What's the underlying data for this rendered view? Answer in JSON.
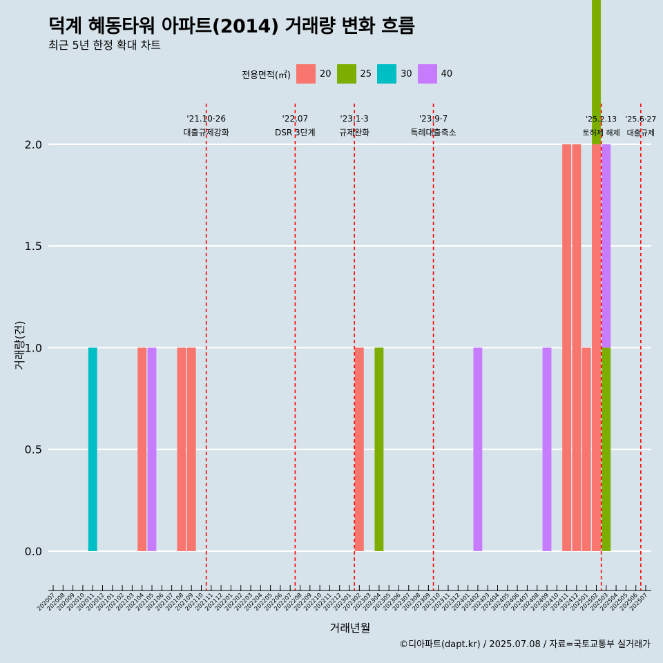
{
  "title": "덕계 혜동타워 아파트(2014) 거래량 변화 흐름",
  "subtitle": "최근 5년 한정 확대 차트",
  "caption": "©디아파트(dapt.kr) / 2025.07.08 / 자료=국토교통부 실거래가",
  "legend": {
    "title": "전용면적(㎡)",
    "items": [
      {
        "label": "20",
        "color": "#F8766D"
      },
      {
        "label": "25",
        "color": "#7CAE00"
      },
      {
        "label": "30",
        "color": "#00BFC4"
      },
      {
        "label": "40",
        "color": "#C77CFF"
      }
    ]
  },
  "chart_data": {
    "type": "bar",
    "xlabel": "거래년월",
    "ylabel": "거래량(건)",
    "ylim": [
      -0.17,
      2.2
    ],
    "yticks": [
      "0.0",
      "0.5",
      "1.0",
      "1.5",
      "2.0"
    ],
    "ytick_values": [
      0,
      0.5,
      1.0,
      1.5,
      2.0
    ],
    "grid": true,
    "legend_position": "top",
    "categories": [
      "202007",
      "202008",
      "202009",
      "202010",
      "202011",
      "202012",
      "202101",
      "202102",
      "202103",
      "202104",
      "202105",
      "202106",
      "202107",
      "202108",
      "202109",
      "202110",
      "202111",
      "202112",
      "202201",
      "202202",
      "202203",
      "202204",
      "202205",
      "202206",
      "202207",
      "202208",
      "202209",
      "202210",
      "202211",
      "202212",
      "202301",
      "202302",
      "202303",
      "202304",
      "202305",
      "202306",
      "202307",
      "202308",
      "202309",
      "202310",
      "202311",
      "202312",
      "202401",
      "202402",
      "202403",
      "202404",
      "202405",
      "202406",
      "202407",
      "202408",
      "202409",
      "202410",
      "202411",
      "202412",
      "202501",
      "202502",
      "202503",
      "202504",
      "202505",
      "202506",
      "202507"
    ],
    "series": [
      {
        "name": "20",
        "color": "#F8766D",
        "points": [
          {
            "x": "202104",
            "y": 1
          },
          {
            "x": "202108",
            "y": 1
          },
          {
            "x": "202109",
            "y": 1
          },
          {
            "x": "202302",
            "y": 1
          },
          {
            "x": "202411",
            "y": 2
          },
          {
            "x": "202412",
            "y": 2
          },
          {
            "x": "202501",
            "y": 1
          },
          {
            "x": "202502",
            "y": 2
          }
        ]
      },
      {
        "name": "25",
        "color": "#7CAE00",
        "points": [
          {
            "x": "202304",
            "y": 1
          },
          {
            "x": "202502",
            "y": 1
          },
          {
            "x": "202503",
            "y": 1
          }
        ]
      },
      {
        "name": "30",
        "color": "#00BFC4",
        "points": [
          {
            "x": "202011",
            "y": 1
          },
          {
            "x": "202502",
            "y": 1
          }
        ]
      },
      {
        "name": "40",
        "color": "#C77CFF",
        "points": [
          {
            "x": "202105",
            "y": 1
          },
          {
            "x": "202402",
            "y": 1
          },
          {
            "x": "202409",
            "y": 1
          },
          {
            "x": "202503",
            "y": 1
          }
        ]
      }
    ],
    "events": [
      {
        "x": "202110",
        "date": "'21.10·26",
        "label": "대출규제강화",
        "color": "#FF0000"
      },
      {
        "x": "202207",
        "date": "'22.07",
        "label": "DSR 3단계",
        "color": "#FF0000"
      },
      {
        "x": "202301",
        "date": "'23.1·3",
        "label": "규제완화",
        "color": "#FF0000"
      },
      {
        "x": "202309",
        "date": "'23.9·7",
        "label": "특례대출축소",
        "color": "#FF0000"
      },
      {
        "x": "202502",
        "date": "'25.2.13",
        "label": "토허제 해제",
        "color": "#FF0000"
      },
      {
        "x": "202506",
        "date": "'25.6·27",
        "label": "대출규제",
        "color": "#FF0000"
      }
    ]
  }
}
